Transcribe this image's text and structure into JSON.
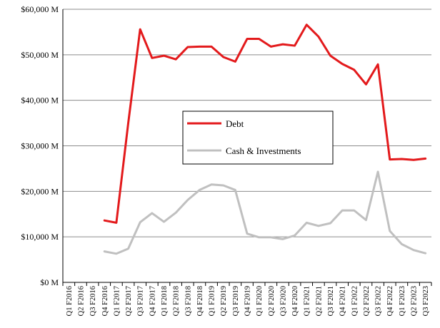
{
  "chart_data": {
    "type": "line",
    "title": "",
    "xlabel": "",
    "ylabel": "",
    "ylim": [
      0,
      60000
    ],
    "yticks": [
      0,
      10000,
      20000,
      30000,
      40000,
      50000,
      60000
    ],
    "ytick_labels": [
      "$0 M",
      "$10,000 M",
      "$20,000 M",
      "$30,000 M",
      "$40,000 M",
      "$50,000 M",
      "$60,000 M"
    ],
    "grid": "horizontal",
    "legend_position": "center",
    "categories": [
      "Q1 F2016",
      "Q2 F2016",
      "Q3 F2016",
      "Q4 F2016",
      "Q1 F2017",
      "Q2 F2017",
      "Q3 F2017",
      "Q4 F2017",
      "Q1 F2018",
      "Q2 F2018",
      "Q3 F2018",
      "Q4 F2018",
      "Q1 F2019",
      "Q2 F2019",
      "Q3 F2019",
      "Q4 F2019",
      "Q1 F2020",
      "Q2 F2020",
      "Q3 F2020",
      "Q4 F2020",
      "Q1 F2021",
      "Q2 F2021",
      "Q3 F2021",
      "Q4 F2021",
      "Q1 F2022",
      "Q2 F2022",
      "Q3 F2022",
      "Q4 F2022",
      "Q1 F2023",
      "Q2 F2023",
      "Q3 F2023"
    ],
    "series": [
      {
        "name": "Debt",
        "color": "#e31a1c",
        "values": [
          null,
          null,
          null,
          13600,
          13100,
          35000,
          55600,
          49300,
          49800,
          49000,
          51700,
          51800,
          51800,
          49500,
          48500,
          53500,
          53500,
          51800,
          52300,
          52000,
          56600,
          54000,
          49800,
          48000,
          46700,
          43500,
          47900,
          27000,
          27100,
          26900,
          27200
        ]
      },
      {
        "name": "Cash & Investments",
        "color": "#c0c0c0",
        "values": [
          null,
          null,
          null,
          6800,
          6300,
          7400,
          13200,
          15200,
          13300,
          15300,
          18100,
          20300,
          21500,
          21300,
          20300,
          10700,
          9900,
          9900,
          9500,
          10300,
          13100,
          12400,
          13000,
          15800,
          15800,
          13700,
          24300,
          11300,
          8400,
          7100,
          6400
        ]
      }
    ]
  }
}
